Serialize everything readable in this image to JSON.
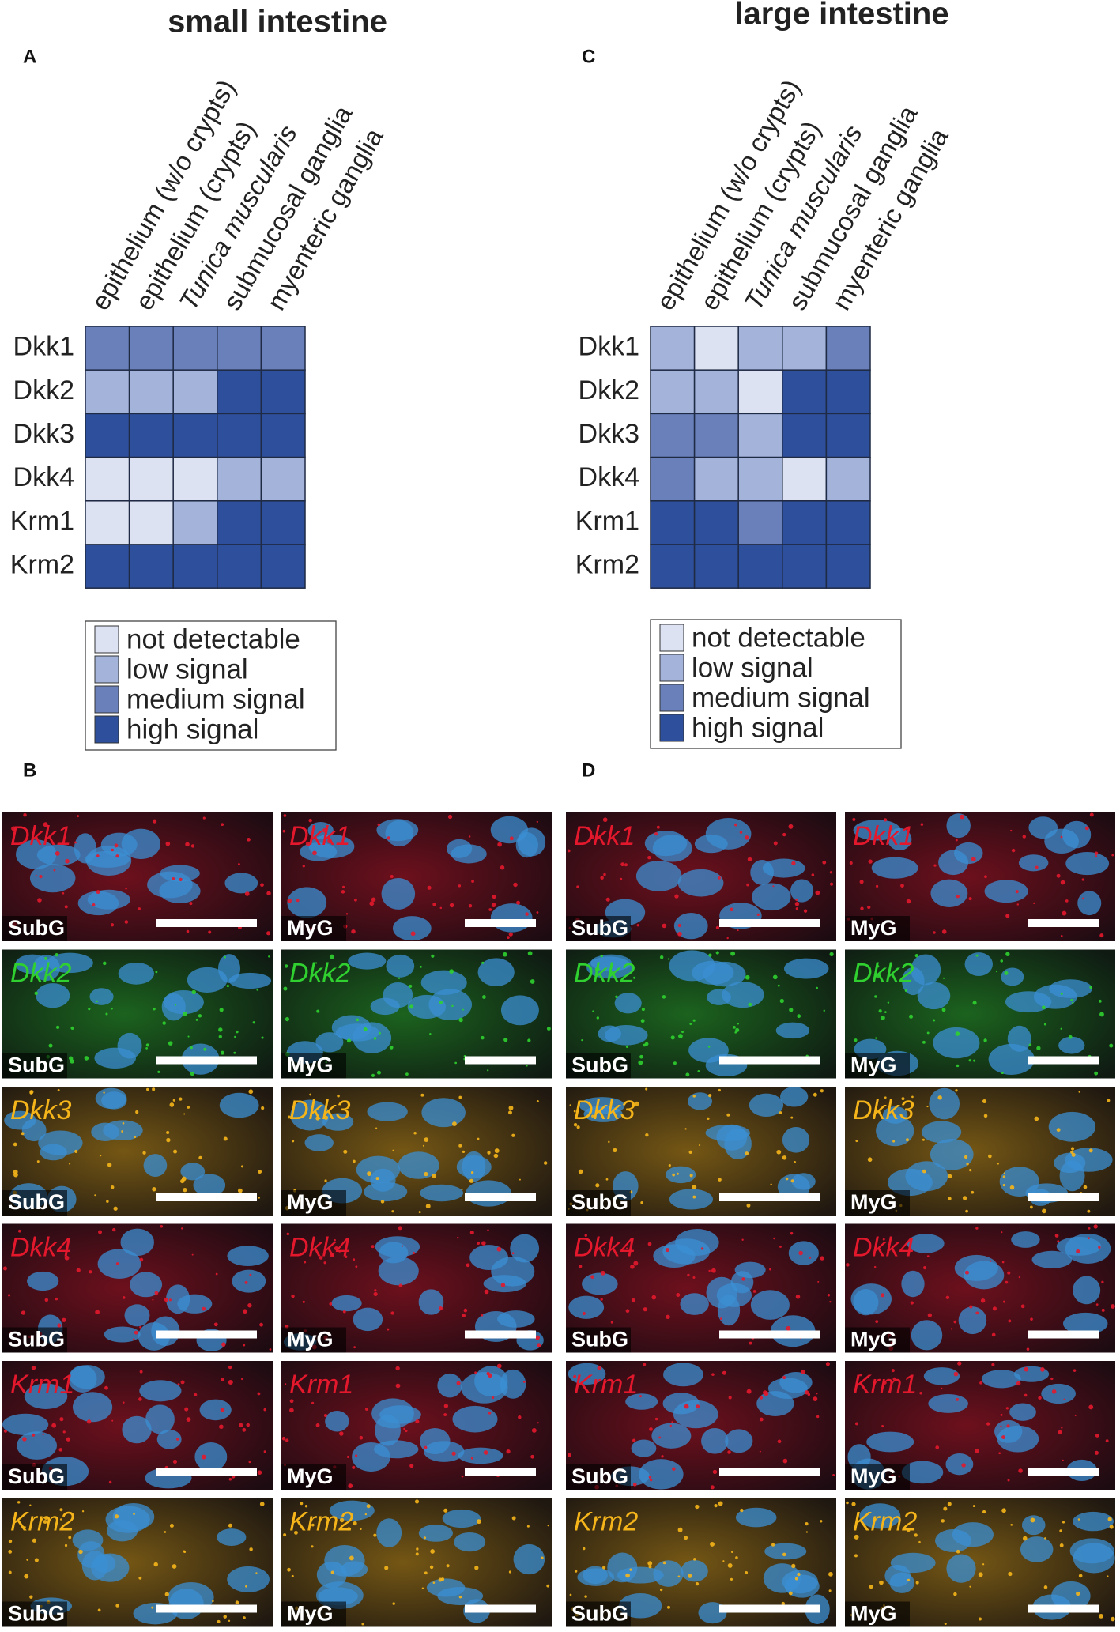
{
  "chart_data": [
    {
      "type": "heatmap",
      "panel": "A",
      "title": "small intestine",
      "columns": [
        "epithelium (w/o crypts)",
        "epithelium (crypts)",
        "Tunica muscularis",
        "submucosal ganglia",
        "myenteric ganglia"
      ],
      "column_style": [
        "normal",
        "normal",
        "italic",
        "normal",
        "normal"
      ],
      "rows": [
        "Dkk1",
        "Dkk2",
        "Dkk3",
        "Dkk4",
        "Krm1",
        "Krm2"
      ],
      "values": [
        [
          2,
          2,
          2,
          2,
          2
        ],
        [
          1,
          1,
          1,
          3,
          3
        ],
        [
          3,
          3,
          3,
          3,
          3
        ],
        [
          0,
          0,
          0,
          1,
          1
        ],
        [
          0,
          0,
          1,
          3,
          3
        ],
        [
          3,
          3,
          3,
          3,
          3
        ]
      ],
      "legend": [
        {
          "value": 0,
          "label": "not detectable",
          "color": "#dde2f3"
        },
        {
          "value": 1,
          "label": "low signal",
          "color": "#a3b3da"
        },
        {
          "value": 2,
          "label": "medium signal",
          "color": "#6a80ba"
        },
        {
          "value": 3,
          "label": "high signal",
          "color": "#2e4f9b"
        }
      ]
    },
    {
      "type": "heatmap",
      "panel": "C",
      "title": "large intestine",
      "columns": [
        "epithelium (w/o crypts)",
        "epithelium (crypts)",
        "Tunica muscularis",
        "submucosal ganglia",
        "myenteric ganglia"
      ],
      "column_style": [
        "normal",
        "normal",
        "italic",
        "normal",
        "normal"
      ],
      "rows": [
        "Dkk1",
        "Dkk2",
        "Dkk3",
        "Dkk4",
        "Krm1",
        "Krm2"
      ],
      "values": [
        [
          1,
          0,
          1,
          1,
          2
        ],
        [
          1,
          1,
          0,
          3,
          3
        ],
        [
          2,
          2,
          1,
          3,
          3
        ],
        [
          2,
          1,
          1,
          0,
          1
        ],
        [
          3,
          3,
          2,
          3,
          3
        ],
        [
          3,
          3,
          3,
          3,
          3
        ]
      ],
      "legend": [
        {
          "value": 0,
          "label": "not detectable",
          "color": "#dde2f3"
        },
        {
          "value": 1,
          "label": "low signal",
          "color": "#a3b3da"
        },
        {
          "value": 2,
          "label": "medium signal",
          "color": "#6a80ba"
        },
        {
          "value": 3,
          "label": "high signal",
          "color": "#2e4f9b"
        }
      ]
    }
  ],
  "images": [
    {
      "panel": "B",
      "rows": [
        {
          "stain": "#e3182c",
          "cells": [
            {
              "gene": "Dkk1",
              "region": "SubG"
            },
            {
              "gene": "Dkk1",
              "region": "MyG"
            }
          ]
        },
        {
          "stain": "#2fd02f",
          "cells": [
            {
              "gene": "Dkk2",
              "region": "SubG"
            },
            {
              "gene": "Dkk2",
              "region": "MyG"
            }
          ]
        },
        {
          "stain": "#f5b51a",
          "cells": [
            {
              "gene": "Dkk3",
              "region": "SubG"
            },
            {
              "gene": "Dkk3",
              "region": "MyG"
            }
          ]
        },
        {
          "stain": "#e3182c",
          "cells": [
            {
              "gene": "Dkk4",
              "region": "SubG"
            },
            {
              "gene": "Dkk4",
              "region": "MyG"
            }
          ]
        },
        {
          "stain": "#e3182c",
          "cells": [
            {
              "gene": "Krm1",
              "region": "SubG"
            },
            {
              "gene": "Krm1",
              "region": "MyG"
            }
          ]
        },
        {
          "stain": "#f5b51a",
          "cells": [
            {
              "gene": "Krm2",
              "region": "SubG"
            },
            {
              "gene": "Krm2",
              "region": "MyG"
            }
          ]
        }
      ]
    },
    {
      "panel": "D",
      "rows": [
        {
          "stain": "#e3182c",
          "cells": [
            {
              "gene": "Dkk1",
              "region": "SubG"
            },
            {
              "gene": "Dkk1",
              "region": "MyG"
            }
          ]
        },
        {
          "stain": "#2fd02f",
          "cells": [
            {
              "gene": "Dkk2",
              "region": "SubG"
            },
            {
              "gene": "Dkk2",
              "region": "MyG"
            }
          ]
        },
        {
          "stain": "#f5b51a",
          "cells": [
            {
              "gene": "Dkk3",
              "region": "SubG"
            },
            {
              "gene": "Dkk3",
              "region": "MyG"
            }
          ]
        },
        {
          "stain": "#e3182c",
          "cells": [
            {
              "gene": "Dkk4",
              "region": "SubG"
            },
            {
              "gene": "Dkk4",
              "region": "MyG"
            }
          ]
        },
        {
          "stain": "#e3182c",
          "cells": [
            {
              "gene": "Krm1",
              "region": "SubG"
            },
            {
              "gene": "Krm1",
              "region": "MyG"
            }
          ]
        },
        {
          "stain": "#f5b51a",
          "cells": [
            {
              "gene": "Krm2",
              "region": "SubG"
            },
            {
              "gene": "Krm2",
              "region": "MyG"
            }
          ]
        }
      ]
    }
  ]
}
